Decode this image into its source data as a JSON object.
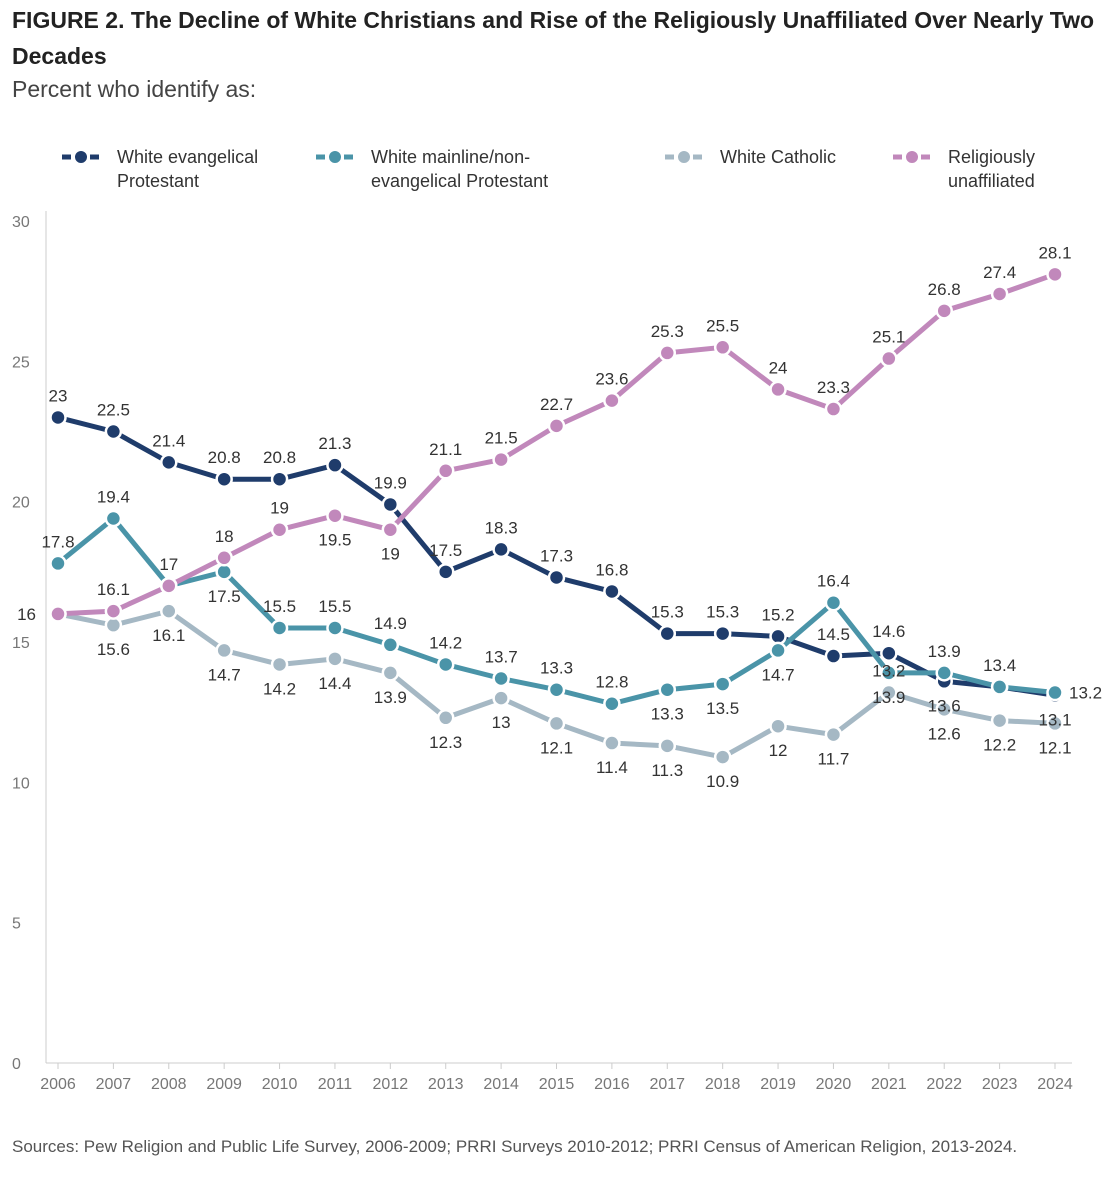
{
  "figure": {
    "title": "FIGURE 2.  The Decline of White Christians and Rise of the Religiously Unaffiliated Over Nearly Two Decades",
    "subtitle": "Percent who identify as:",
    "source": "Sources: Pew Religion and Public Life Survey, 2006-2009; PRRI Surveys 2010-2012; PRRI Census of American Religion, 2013-2024."
  },
  "chart_data": {
    "type": "line",
    "title": "The Decline of White Christians and Rise of the Religiously Unaffiliated Over Nearly Two Decades",
    "ylabel": "Percent who identify as:",
    "xlabel": "",
    "ylim": [
      0,
      30
    ],
    "yticks": [
      0,
      5,
      10,
      15,
      20,
      25,
      30
    ],
    "grid": false,
    "legend_position": "top",
    "x": [
      2006,
      2007,
      2008,
      2009,
      2010,
      2011,
      2012,
      2013,
      2014,
      2015,
      2016,
      2017,
      2018,
      2019,
      2020,
      2021,
      2022,
      2023,
      2024
    ],
    "series": [
      {
        "name": "White evangelical Protestant",
        "legend_lines": [
          "White evangelical",
          "Protestant"
        ],
        "color": "#1f3c6b",
        "values": [
          23,
          22.5,
          21.4,
          20.8,
          20.8,
          21.3,
          19.9,
          17.5,
          18.3,
          17.3,
          16.8,
          15.3,
          15.3,
          15.2,
          14.5,
          14.6,
          13.6,
          13.4,
          13.1
        ],
        "labels": [
          "23",
          "22.5",
          "21.4",
          "20.8",
          "20.8",
          "21.3",
          "19.9",
          "17.5",
          "18.3",
          "17.3",
          "16.8",
          "15.3",
          "15.3",
          "15.2",
          "14.5",
          "14.6",
          "13.6",
          "13.4",
          "13.1"
        ],
        "label_positions": [
          "above",
          "above",
          "above",
          "above",
          "above",
          "above",
          "above",
          "above",
          "above",
          "above",
          "above",
          "above",
          "above",
          "above",
          "above",
          "above",
          "below",
          "above",
          "below"
        ]
      },
      {
        "name": "White mainline/non-evangelical Protestant",
        "legend_lines": [
          "White mainline/non-",
          "evangelical Protestant"
        ],
        "color": "#4a94a8",
        "values": [
          17.8,
          19.4,
          17,
          17.5,
          15.5,
          15.5,
          14.9,
          14.2,
          13.7,
          13.3,
          12.8,
          13.3,
          13.5,
          14.7,
          16.4,
          13.9,
          13.9,
          13.4,
          13.2
        ],
        "labels": [
          "17.8",
          "19.4",
          "17",
          "17.5",
          "15.5",
          "15.5",
          "14.9",
          "14.2",
          "13.7",
          "13.3",
          "12.8",
          "13.3",
          "13.5",
          "14.7",
          "16.4",
          "13.9",
          "13.9",
          "",
          "13.2"
        ],
        "label_positions": [
          "above",
          "above",
          "above",
          "below",
          "above",
          "above",
          "above",
          "above",
          "above",
          "above",
          "above",
          "below",
          "below",
          "below",
          "above",
          "below",
          "above",
          "above",
          "right"
        ]
      },
      {
        "name": "White Catholic",
        "legend_lines": [
          "White Catholic"
        ],
        "color": "#a5b8c4",
        "values": [
          16,
          15.6,
          16.1,
          14.7,
          14.2,
          14.4,
          13.9,
          12.3,
          13,
          12.1,
          11.4,
          11.3,
          10.9,
          12,
          11.7,
          13.2,
          12.6,
          12.2,
          12.1
        ],
        "labels": [
          "16",
          "15.6",
          "16.1",
          "14.7",
          "14.2",
          "14.4",
          "13.9",
          "12.3",
          "13",
          "12.1",
          "11.4",
          "11.3",
          "10.9",
          "12",
          "11.7",
          "13.2",
          "12.6",
          "12.2",
          "12.1"
        ],
        "label_positions": [
          "left",
          "below",
          "below",
          "below",
          "below",
          "below",
          "below",
          "below",
          "below",
          "below",
          "below",
          "below",
          "below",
          "below",
          "below",
          "above",
          "below",
          "below",
          "below"
        ]
      },
      {
        "name": "Religiously unaffiliated",
        "legend_lines": [
          "Religiously",
          "unaffiliated"
        ],
        "color": "#c188bb",
        "values": [
          16,
          16.1,
          17,
          18,
          19,
          19.5,
          19,
          21.1,
          21.5,
          22.7,
          23.6,
          25.3,
          25.5,
          24,
          23.3,
          25.1,
          26.8,
          27.4,
          28.1
        ],
        "labels": [
          "",
          "16.1",
          "",
          "18",
          "19",
          "19.5",
          "19",
          "21.1",
          "21.5",
          "22.7",
          "23.6",
          "25.3",
          "25.5",
          "24",
          "23.3",
          "25.1",
          "26.8",
          "27.4",
          "28.1"
        ],
        "label_positions": [
          "above",
          "above",
          "above",
          "above",
          "above",
          "below",
          "below",
          "above",
          "above",
          "above",
          "above",
          "above",
          "above",
          "above",
          "above",
          "above",
          "above",
          "above",
          "above"
        ]
      }
    ]
  }
}
